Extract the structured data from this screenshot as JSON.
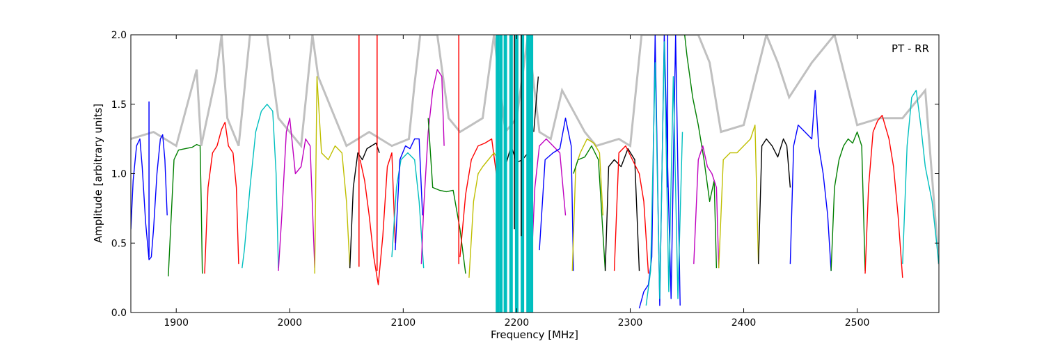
{
  "chart_data": {
    "type": "line",
    "title": "",
    "annotation": "PT - RR",
    "xlabel": "Frequency [MHz]",
    "ylabel": "Amplitude [arbitrary units]",
    "xlim": [
      1860,
      2572
    ],
    "ylim": [
      0.0,
      2.0
    ],
    "x_ticks": [
      1900,
      2000,
      2100,
      2200,
      2300,
      2400,
      2500
    ],
    "x_tick_labels": [
      "1900",
      "2000",
      "2100",
      "2200",
      "2300",
      "2400",
      "2500"
    ],
    "y_ticks": [
      0.0,
      0.5,
      1.0,
      1.5,
      2.0
    ],
    "y_tick_labels": [
      "0.0",
      "0.5",
      "1.0",
      "1.5",
      "2.0"
    ],
    "grid": false,
    "background_color": "#c0c0c0",
    "series": [
      {
        "color": "#0000ff",
        "x": [
          1860,
          1862,
          1865,
          1868,
          1870,
          1873,
          1876,
          1878,
          1880,
          1883,
          1886,
          1888,
          1890,
          1892
        ],
        "y": [
          0.6,
          0.95,
          1.2,
          1.25,
          1.05,
          0.65,
          0.38,
          0.4,
          0.6,
          1.0,
          1.25,
          1.28,
          1.1,
          0.7
        ]
      },
      {
        "color": "#007f00",
        "x": [
          1893,
          1895,
          1898,
          1902,
          1908,
          1914,
          1918,
          1921,
          1922,
          1923
        ],
        "y": [
          0.26,
          0.6,
          1.1,
          1.17,
          1.18,
          1.19,
          1.21,
          1.2,
          0.8,
          0.28
        ]
      },
      {
        "color": "#ff0000",
        "x": [
          1925,
          1928,
          1932,
          1936,
          1940,
          1943,
          1946,
          1950,
          1953,
          1955
        ],
        "y": [
          0.28,
          0.9,
          1.15,
          1.2,
          1.32,
          1.37,
          1.2,
          1.15,
          0.9,
          0.35
        ]
      },
      {
        "color": "#00bfbf",
        "x": [
          1958,
          1960,
          1965,
          1970,
          1975,
          1980,
          1985,
          1988,
          1990
        ],
        "y": [
          0.32,
          0.45,
          0.9,
          1.3,
          1.45,
          1.5,
          1.45,
          1.0,
          0.32
        ]
      },
      {
        "color": "#bf00bf",
        "x": [
          1990,
          1993,
          1997,
          2000,
          2005,
          2010,
          2014,
          2018,
          2022
        ],
        "y": [
          0.3,
          0.7,
          1.3,
          1.4,
          1.0,
          1.05,
          1.25,
          1.2,
          0.32
        ]
      },
      {
        "color": "#bfbf00",
        "x": [
          2022,
          2024,
          2028,
          2034,
          2040,
          2046,
          2050,
          2053
        ],
        "y": [
          0.28,
          1.7,
          1.15,
          1.1,
          1.2,
          1.15,
          0.8,
          0.32
        ]
      },
      {
        "color": "#000000",
        "x": [
          2053,
          2056,
          2060,
          2064,
          2068,
          2072,
          2076,
          2079
        ],
        "y": [
          0.32,
          0.9,
          1.15,
          1.1,
          1.18,
          1.2,
          1.22,
          1.15
        ]
      },
      {
        "color": "#ff0000",
        "x": [
          2062,
          2066,
          2070,
          2074,
          2078,
          2082,
          2086,
          2090,
          2093
        ],
        "y": [
          1.1,
          0.95,
          0.7,
          0.4,
          0.2,
          0.55,
          1.05,
          1.15,
          0.5
        ]
      },
      {
        "color": "#00bfbf",
        "x": [
          2090,
          2094,
          2098,
          2104,
          2110,
          2114,
          2118
        ],
        "y": [
          0.4,
          0.9,
          1.1,
          1.15,
          1.1,
          0.8,
          0.32
        ]
      },
      {
        "color": "#0000ff",
        "x": [
          2093,
          2097,
          2102,
          2106,
          2110,
          2114,
          2117
        ],
        "y": [
          0.45,
          1.1,
          1.2,
          1.18,
          1.25,
          1.25,
          0.7
        ]
      },
      {
        "color": "#bf00bf",
        "x": [
          2116,
          2118,
          2122,
          2126,
          2130,
          2134,
          2136
        ],
        "y": [
          0.35,
          0.75,
          1.3,
          1.6,
          1.75,
          1.7,
          1.2
        ]
      },
      {
        "color": "#007f00",
        "x": [
          2122,
          2126,
          2132,
          2138,
          2144,
          2150,
          2155
        ],
        "y": [
          1.4,
          0.9,
          0.88,
          0.87,
          0.88,
          0.6,
          0.28
        ]
      },
      {
        "color": "#ff0000",
        "x": [
          2150,
          2155,
          2160,
          2166,
          2172,
          2178,
          2182
        ],
        "y": [
          0.4,
          0.85,
          1.1,
          1.2,
          1.22,
          1.25,
          1.0
        ]
      },
      {
        "color": "#bfbf00",
        "x": [
          2158,
          2162,
          2166,
          2170,
          2175,
          2180,
          2184
        ],
        "y": [
          0.25,
          0.8,
          1.0,
          1.05,
          1.1,
          1.15,
          1.1
        ]
      },
      {
        "color": "#000000",
        "x": [
          2190,
          2195,
          2200,
          2205,
          2210,
          2213
        ],
        "y": [
          1.05,
          1.2,
          1.08,
          1.1,
          1.15,
          1.05
        ]
      },
      {
        "color": "#000000",
        "x": [
          2215,
          2217,
          2219
        ],
        "y": [
          1.3,
          1.5,
          1.7
        ]
      },
      {
        "color": "#bf00bf",
        "x": [
          2213,
          2216,
          2220,
          2226,
          2232,
          2238,
          2243
        ],
        "y": [
          0.35,
          0.9,
          1.2,
          1.25,
          1.2,
          1.15,
          0.7
        ]
      },
      {
        "color": "#0000ff",
        "x": [
          2220,
          2225,
          2232,
          2238,
          2243,
          2248,
          2250
        ],
        "y": [
          0.45,
          1.1,
          1.15,
          1.18,
          1.4,
          1.2,
          0.3
        ]
      },
      {
        "color": "#bfbf00",
        "x": [
          2249,
          2252,
          2256,
          2262,
          2268,
          2273,
          2276
        ],
        "y": [
          0.3,
          1.05,
          1.15,
          1.25,
          1.22,
          1.15,
          0.7
        ]
      },
      {
        "color": "#007f00",
        "x": [
          2250,
          2254,
          2260,
          2266,
          2272,
          2278
        ],
        "y": [
          1.0,
          1.1,
          1.12,
          1.2,
          1.1,
          0.3
        ]
      },
      {
        "color": "#000000",
        "x": [
          2278,
          2281,
          2286,
          2292,
          2298,
          2304,
          2308
        ],
        "y": [
          0.3,
          1.05,
          1.1,
          1.05,
          1.18,
          1.1,
          0.3
        ]
      },
      {
        "color": "#ff0000",
        "x": [
          2286,
          2290,
          2296,
          2302,
          2308,
          2312,
          2316
        ],
        "y": [
          0.3,
          1.15,
          1.2,
          1.1,
          1.0,
          0.8,
          0.28
        ]
      },
      {
        "color": "#0000ff",
        "x": [
          2308,
          2312,
          2316,
          2319,
          2322,
          2326,
          2330,
          2336,
          2340,
          2344
        ],
        "y": [
          0.03,
          0.15,
          0.2,
          0.4,
          2.0,
          0.05,
          2.0,
          0.1,
          2.0,
          0.05
        ]
      },
      {
        "color": "#00bfbf",
        "x": [
          2314,
          2318,
          2322,
          2326,
          2330,
          2334,
          2338,
          2342,
          2346
        ],
        "y": [
          0.05,
          0.3,
          1.8,
          0.1,
          1.95,
          0.15,
          1.7,
          0.1,
          1.3
        ]
      },
      {
        "color": "#007f00",
        "x": [
          2348,
          2350,
          2355,
          2360,
          2365,
          2370,
          2374,
          2376
        ],
        "y": [
          2.0,
          1.85,
          1.55,
          1.35,
          1.1,
          0.8,
          0.95,
          0.32
        ]
      },
      {
        "color": "#bf00bf",
        "x": [
          2356,
          2360,
          2364,
          2368,
          2372,
          2376,
          2378
        ],
        "y": [
          0.35,
          1.1,
          1.2,
          1.05,
          1.0,
          0.9,
          0.32
        ]
      },
      {
        "color": "#bfbf00",
        "x": [
          2378,
          2382,
          2388,
          2394,
          2400,
          2406,
          2410,
          2413
        ],
        "y": [
          0.32,
          1.1,
          1.15,
          1.15,
          1.2,
          1.25,
          1.35,
          0.35
        ]
      },
      {
        "color": "#000000",
        "x": [
          2413,
          2416,
          2420,
          2425,
          2430,
          2435,
          2438,
          2441
        ],
        "y": [
          0.35,
          1.2,
          1.25,
          1.2,
          1.12,
          1.25,
          1.2,
          0.9
        ]
      },
      {
        "color": "#0000ff",
        "x": [
          2441,
          2444,
          2448,
          2454,
          2460,
          2463,
          2466,
          2470,
          2474,
          2477
        ],
        "y": [
          0.35,
          1.2,
          1.35,
          1.3,
          1.25,
          1.6,
          1.2,
          1.0,
          0.7,
          0.3
        ]
      },
      {
        "color": "#007f00",
        "x": [
          2477,
          2480,
          2484,
          2488,
          2492,
          2496,
          2500,
          2504,
          2507
        ],
        "y": [
          0.3,
          0.9,
          1.1,
          1.2,
          1.25,
          1.22,
          1.3,
          1.2,
          0.3
        ]
      },
      {
        "color": "#ff0000",
        "x": [
          2507,
          2510,
          2514,
          2518,
          2522,
          2528,
          2532,
          2536,
          2540
        ],
        "y": [
          0.28,
          0.9,
          1.3,
          1.38,
          1.42,
          1.25,
          1.05,
          0.7,
          0.25
        ]
      },
      {
        "color": "#00bfbf",
        "x": [
          2540,
          2544,
          2548,
          2552,
          2556,
          2560,
          2566,
          2572
        ],
        "y": [
          0.35,
          1.2,
          1.55,
          1.6,
          1.35,
          1.05,
          0.8,
          0.35
        ]
      }
    ],
    "spikes": [
      {
        "color": "#ff0000",
        "x": 2061,
        "y_min": 0.33,
        "y_max": 2.0
      },
      {
        "color": "#ff0000",
        "x": 2077,
        "y_min": 0.3,
        "y_max": 2.0
      },
      {
        "color": "#ff0000",
        "x": 2149,
        "y_min": 0.35,
        "y_max": 2.0
      },
      {
        "color": "#0000ff",
        "x": 1876,
        "y_min": 0.4,
        "y_max": 1.52
      },
      {
        "color": "#bfbf00",
        "x": 2184,
        "y_min": 0.3,
        "y_max": 2.0
      },
      {
        "color": "#00bfbf",
        "x": 2183,
        "y_min": 0.0,
        "y_max": 2.0
      },
      {
        "color": "#00bfbf",
        "x": 2186,
        "y_min": 0.0,
        "y_max": 2.0
      },
      {
        "color": "#00bfbf",
        "x": 2190,
        "y_min": 0.0,
        "y_max": 2.0
      },
      {
        "color": "#00bfbf",
        "x": 2195,
        "y_min": 0.0,
        "y_max": 2.0
      },
      {
        "color": "#00bfbf",
        "x": 2200,
        "y_min": 0.0,
        "y_max": 2.0
      },
      {
        "color": "#00bfbf",
        "x": 2205,
        "y_min": 0.0,
        "y_max": 2.0
      },
      {
        "color": "#00bfbf",
        "x": 2210,
        "y_min": 0.0,
        "y_max": 2.0
      },
      {
        "color": "#00bfbf",
        "x": 2213,
        "y_min": 0.0,
        "y_max": 2.0
      },
      {
        "color": "#000000",
        "x": 2198,
        "y_min": 0.6,
        "y_max": 2.0
      },
      {
        "color": "#000000",
        "x": 2204,
        "y_min": 0.55,
        "y_max": 2.0
      },
      {
        "color": "#0000ff",
        "x": 2333,
        "y_min": 0.9,
        "y_max": 2.0
      }
    ],
    "background_envelope": {
      "x": [
        1860,
        1880,
        1900,
        1918,
        1922,
        1935,
        1940,
        1945,
        1955,
        1965,
        1975,
        1980,
        1990,
        2010,
        2020,
        2025,
        2050,
        2070,
        2090,
        2105,
        2110,
        2115,
        2125,
        2130,
        2140,
        2150,
        2160,
        2170,
        2180,
        2190,
        2200,
        2210,
        2220,
        2230,
        2240,
        2250,
        2260,
        2270,
        2290,
        2300,
        2310,
        2320,
        2330,
        2340,
        2350,
        2360,
        2370,
        2380,
        2400,
        2420,
        2430,
        2440,
        2460,
        2480,
        2500,
        2520,
        2540,
        2560,
        2572
      ],
      "y": [
        1.25,
        1.3,
        1.2,
        1.75,
        1.2,
        1.7,
        2.0,
        1.4,
        1.2,
        2.0,
        2.0,
        2.0,
        1.4,
        1.2,
        2.0,
        1.7,
        1.2,
        1.3,
        1.2,
        1.25,
        1.65,
        2.0,
        2.0,
        2.0,
        1.4,
        1.3,
        1.35,
        1.4,
        2.0,
        1.3,
        1.4,
        2.0,
        1.3,
        1.25,
        1.6,
        1.45,
        1.3,
        1.2,
        1.25,
        1.2,
        2.0,
        2.0,
        2.0,
        2.0,
        2.0,
        2.0,
        1.8,
        1.3,
        1.35,
        2.0,
        1.8,
        1.55,
        1.8,
        2.0,
        1.35,
        1.4,
        1.4,
        1.6,
        0.35
      ]
    }
  }
}
